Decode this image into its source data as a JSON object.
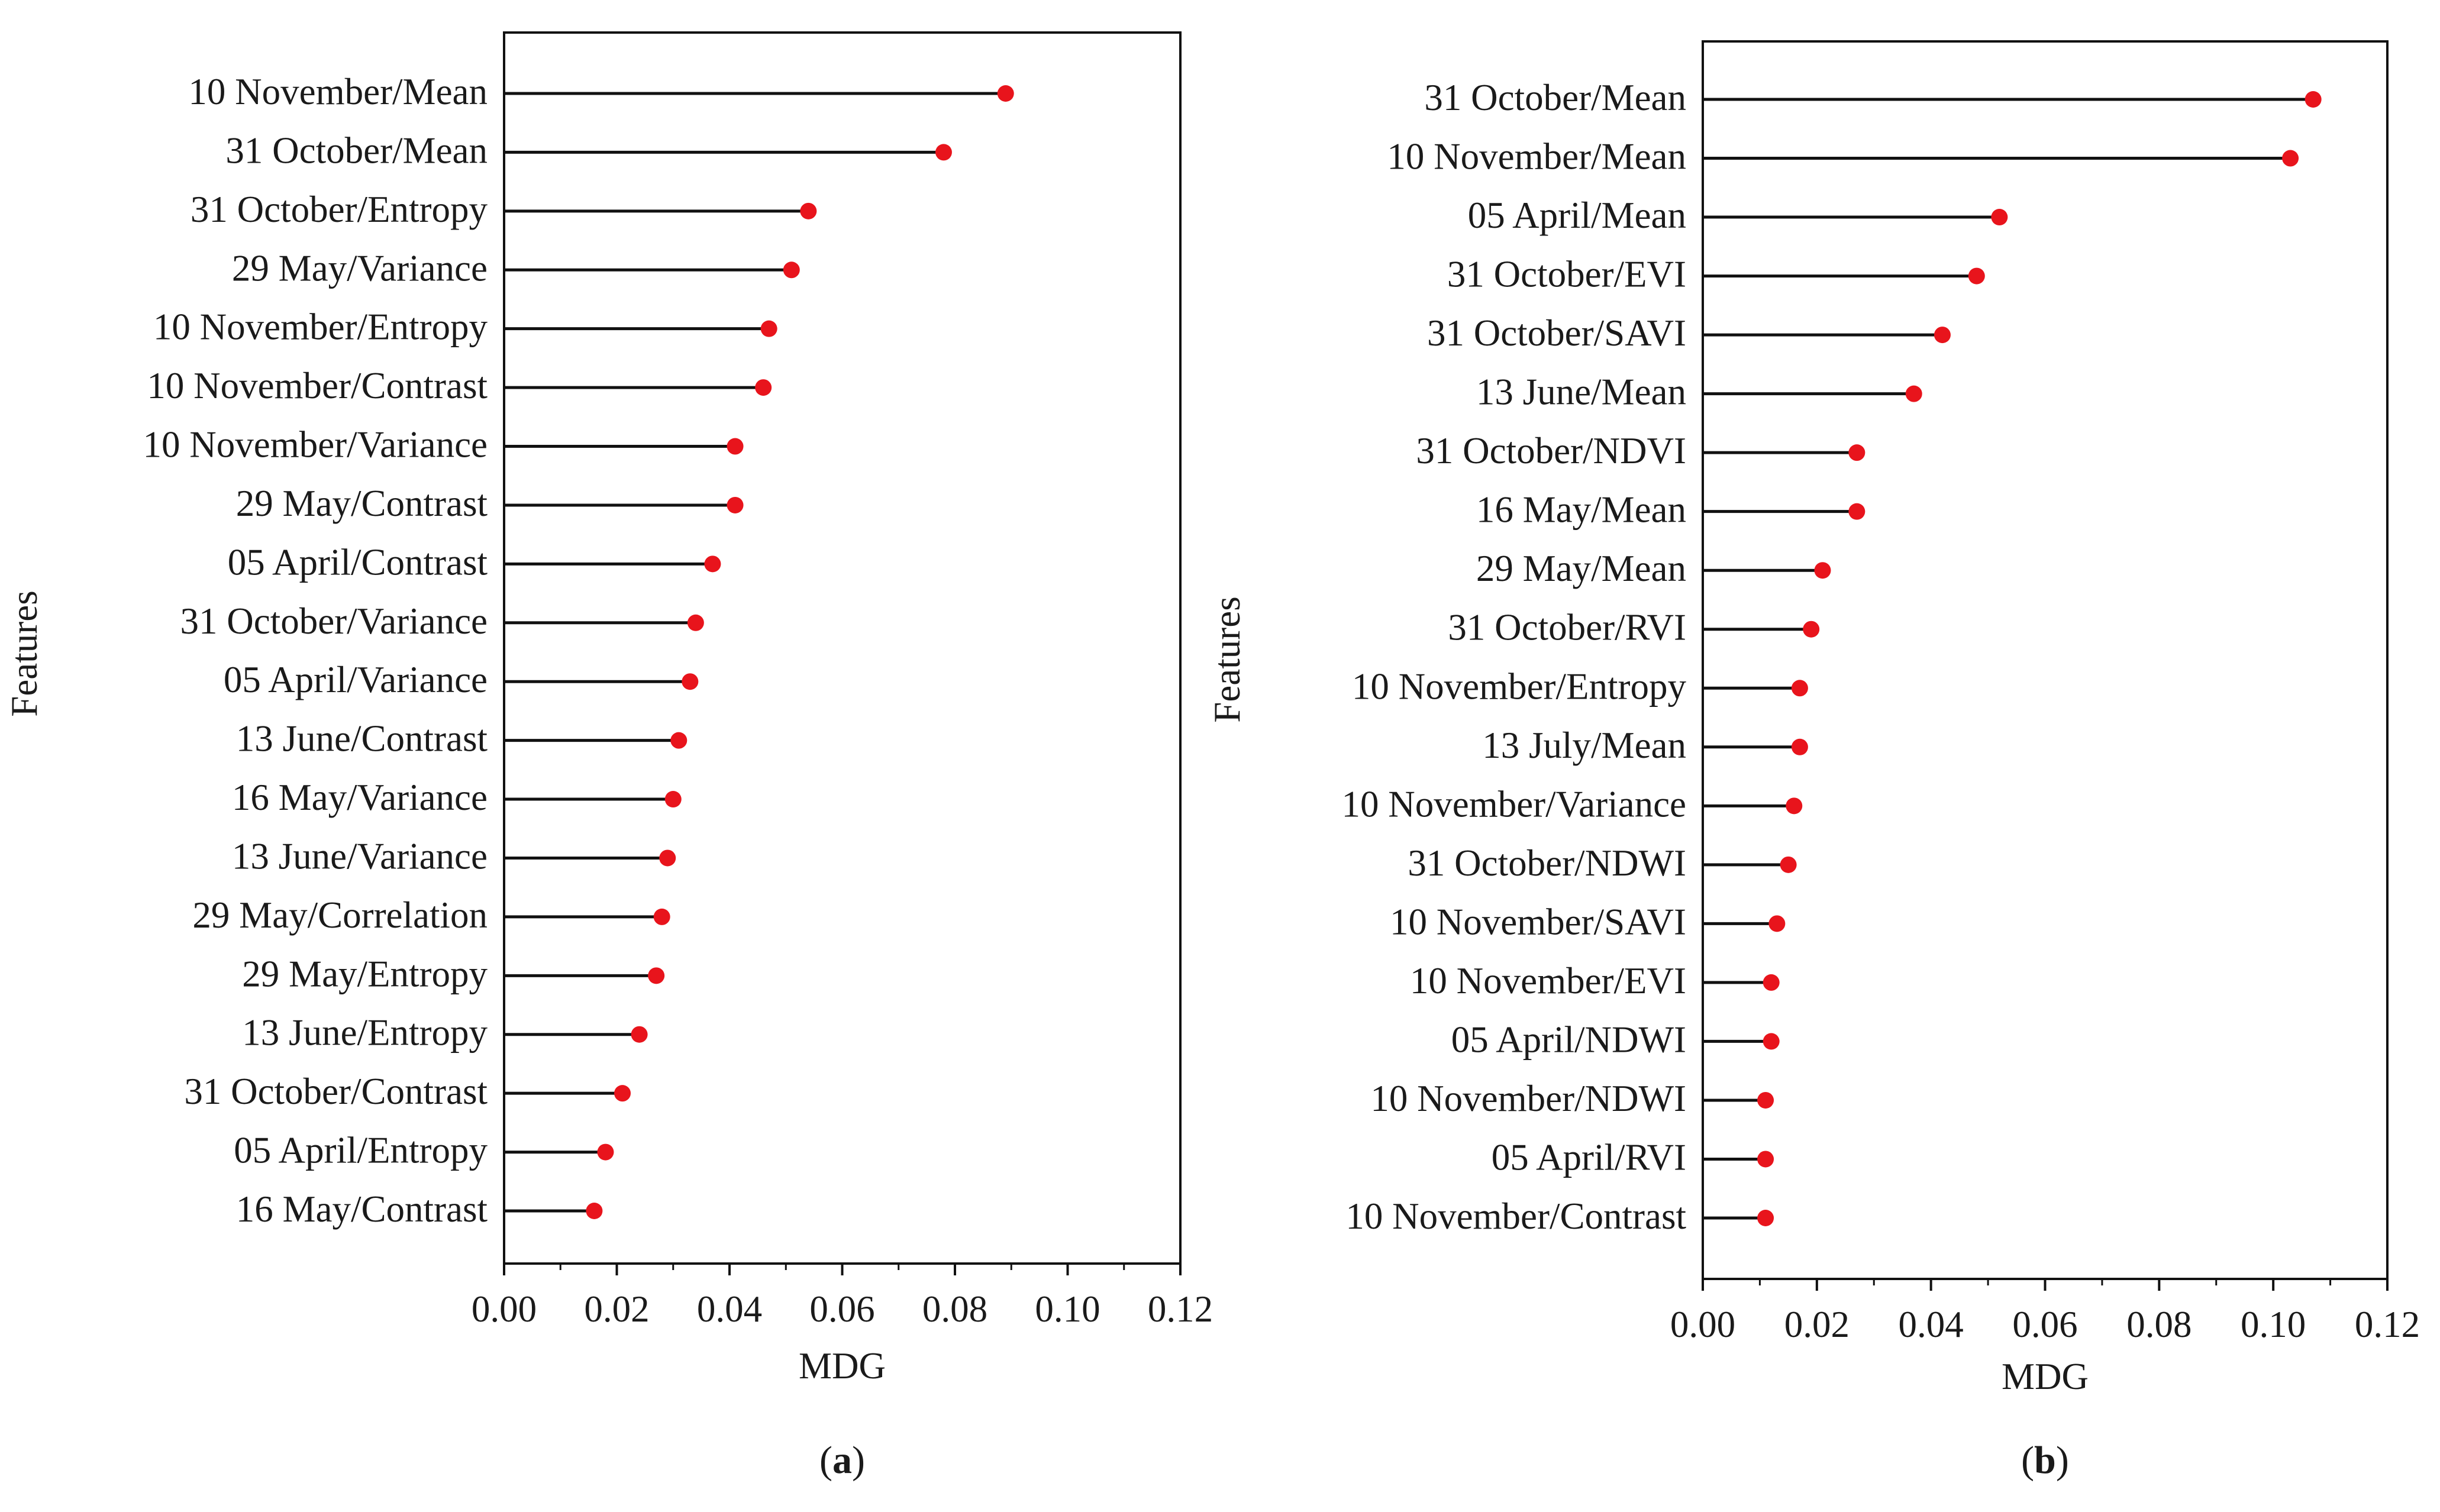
{
  "colors": {
    "stem": "#111111",
    "dot": "#e8141c",
    "axis": "#111111",
    "background": "#ffffff"
  },
  "chart_data": [
    {
      "type": "lollipop",
      "panel_label": "a",
      "xlabel": "MDG",
      "ylabel": "Features",
      "xlim": [
        0,
        0.12
      ],
      "xticks": [
        0.0,
        0.02,
        0.04,
        0.06,
        0.08,
        0.1,
        0.12
      ],
      "tick_labels": [
        "0.00",
        "0.02",
        "0.04",
        "0.06",
        "0.08",
        "0.10",
        "0.12"
      ],
      "grid": false,
      "categories": [
        "10 November/Mean",
        "31 October/Mean",
        "31 October/Entropy",
        "29 May/Variance",
        "10 November/Entropy",
        "10 November/Contrast",
        "10 November/Variance",
        "29 May/Contrast",
        "05 April/Contrast",
        "31 October/Variance",
        "05 April/Variance",
        "13 June/Contrast",
        "16 May/Variance",
        "13 June/Variance",
        "29 May/Correlation",
        "29 May/Entropy",
        "13 June/Entropy",
        "31 October/Contrast",
        "05 April/Entropy",
        "16 May/Contrast"
      ],
      "values": [
        0.089,
        0.078,
        0.054,
        0.051,
        0.047,
        0.046,
        0.041,
        0.041,
        0.037,
        0.034,
        0.033,
        0.031,
        0.03,
        0.029,
        0.028,
        0.027,
        0.024,
        0.021,
        0.018,
        0.016
      ]
    },
    {
      "type": "lollipop",
      "panel_label": "b",
      "xlabel": "MDG",
      "ylabel": "Features",
      "xlim": [
        0,
        0.12
      ],
      "xticks": [
        0.0,
        0.02,
        0.04,
        0.06,
        0.08,
        0.1,
        0.12
      ],
      "tick_labels": [
        "0.00",
        "0.02",
        "0.04",
        "0.06",
        "0.08",
        "0.10",
        "0.12"
      ],
      "grid": false,
      "categories": [
        "31 October/Mean",
        "10 November/Mean",
        "05 April/Mean",
        "31 October/EVI",
        "31 October/SAVI",
        "13 June/Mean",
        "31 October/NDVI",
        "16 May/Mean",
        "29 May/Mean",
        "31 October/RVI",
        "10 November/Entropy",
        "13 July/Mean",
        "10 November/Variance",
        "31 October/NDWI",
        "10 November/SAVI",
        "10 November/EVI",
        "05 April/NDWI",
        "10 November/NDWI",
        "05 April/RVI",
        "10 November/Contrast"
      ],
      "values": [
        0.107,
        0.103,
        0.052,
        0.048,
        0.042,
        0.037,
        0.027,
        0.027,
        0.021,
        0.019,
        0.017,
        0.017,
        0.016,
        0.015,
        0.013,
        0.012,
        0.012,
        0.011,
        0.011,
        0.011
      ]
    }
  ]
}
